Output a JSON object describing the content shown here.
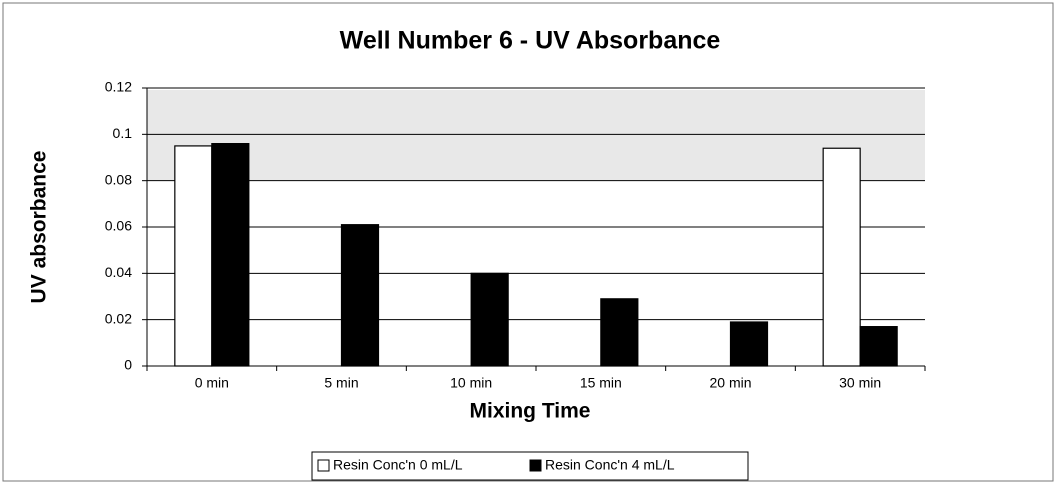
{
  "chart_data": {
    "type": "bar",
    "title": "Well Number 6 - UV Absorbance",
    "x_label": "Mixing Time",
    "y_label": "UV absorbance",
    "categories": [
      "0 min",
      "5 min",
      "10 min",
      "15 min",
      "20 min",
      "30 min"
    ],
    "series": [
      {
        "name": "Resin Conc'n 0 mL/L",
        "color": "#ffffff",
        "values": [
          0.095,
          null,
          null,
          null,
          null,
          0.094
        ]
      },
      {
        "name": "Resin Conc'n 4 mL/L",
        "color": "#000000",
        "values": [
          0.096,
          0.061,
          0.04,
          0.029,
          0.019,
          0.017
        ]
      }
    ],
    "ylim": [
      0,
      0.12
    ],
    "yticks": [
      0,
      0.02,
      0.04,
      0.06,
      0.08,
      0.1,
      0.12
    ],
    "grid": true,
    "legend": "bottom"
  }
}
